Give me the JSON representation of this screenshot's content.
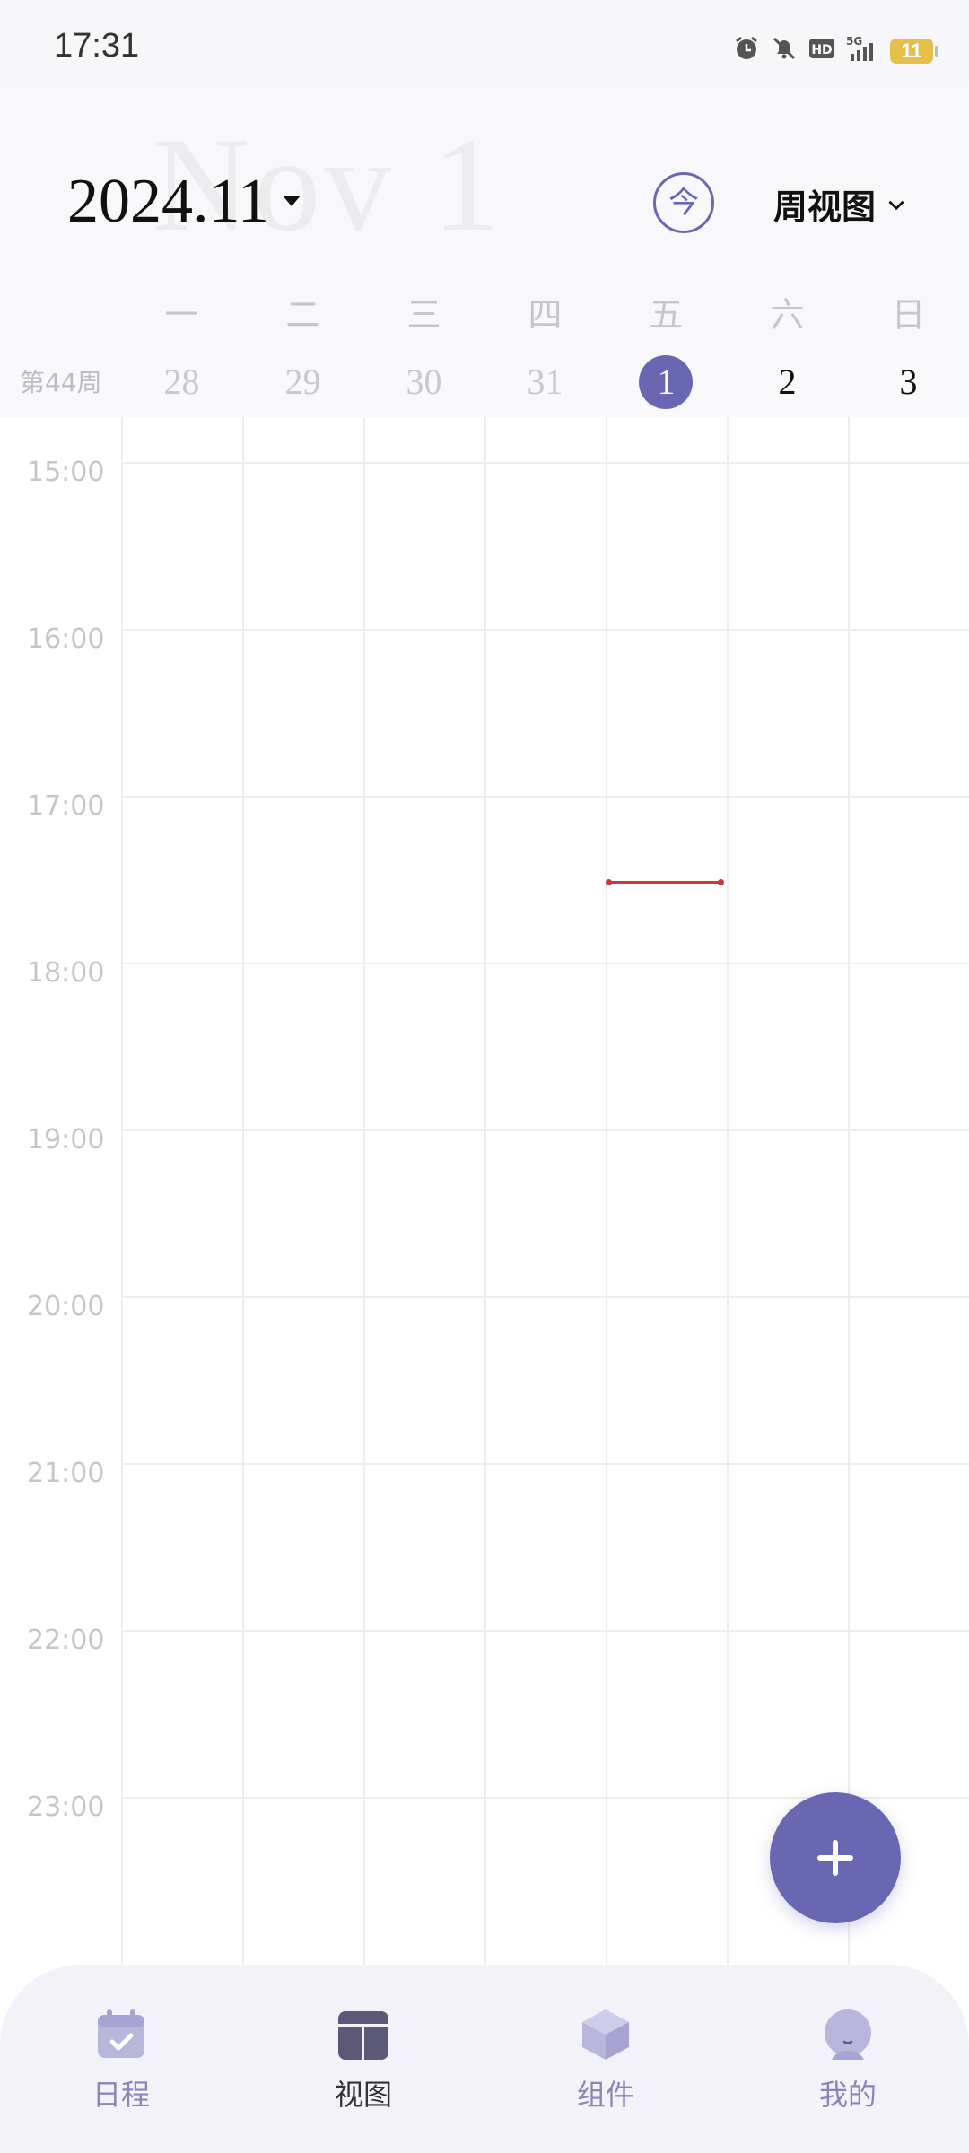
{
  "status_bar": {
    "time": "17:31",
    "icons": [
      "alarm-icon",
      "mute-bell-icon",
      "hd-icon",
      "5g-signal-icon"
    ],
    "battery": "11"
  },
  "header": {
    "background_date": "Nov 1",
    "month": "2024.11",
    "today_button": "今",
    "view_select": "周视图"
  },
  "week": {
    "week_number": "第44周",
    "weekdays": [
      "一",
      "二",
      "三",
      "四",
      "五",
      "六",
      "日"
    ],
    "dates": [
      "28",
      "29",
      "30",
      "31",
      "1",
      "2",
      "3"
    ],
    "today_index": 4
  },
  "timeline": {
    "hours": [
      "15:00",
      "16:00",
      "17:00",
      "18:00",
      "19:00",
      "20:00",
      "21:00",
      "22:00",
      "23:00"
    ],
    "now_indicator_color": "#c63b3b"
  },
  "fab": {
    "icon": "plus-icon",
    "color": "#6a67b2"
  },
  "bottom_nav": {
    "items": [
      {
        "label": "日程",
        "icon": "calendar-check-icon"
      },
      {
        "label": "视图",
        "icon": "layout-grid-icon",
        "active": true
      },
      {
        "label": "组件",
        "icon": "cube-icon"
      },
      {
        "label": "我的",
        "icon": "profile-icon"
      }
    ]
  },
  "colors": {
    "accent": "#6a67b2",
    "muted_text": "#c5c5cc",
    "nav_bg": "#f3f2f8"
  }
}
